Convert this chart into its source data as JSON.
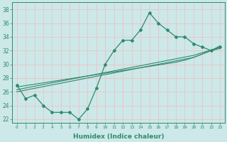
{
  "xlabel": "Humidex (Indice chaleur)",
  "x": [
    0,
    1,
    2,
    3,
    4,
    5,
    6,
    7,
    8,
    9,
    10,
    11,
    12,
    13,
    14,
    15,
    16,
    17,
    18,
    19,
    20,
    21,
    22,
    23
  ],
  "y_main": [
    27.0,
    25.0,
    25.5,
    24.0,
    23.0,
    23.0,
    23.0,
    22.0,
    23.5,
    26.5,
    30.0,
    32.0,
    33.5,
    33.5,
    35.0,
    37.5,
    36.0,
    35.0,
    34.0,
    34.0,
    33.0,
    32.5,
    32.0,
    32.5
  ],
  "y_line1": [
    26.0,
    26.25,
    26.5,
    26.75,
    27.0,
    27.25,
    27.5,
    27.75,
    28.0,
    28.25,
    28.5,
    28.75,
    29.0,
    29.25,
    29.5,
    29.75,
    30.0,
    30.25,
    30.5,
    30.75,
    31.0,
    31.5,
    32.0,
    32.3
  ],
  "y_line2": [
    26.3,
    26.55,
    26.8,
    27.05,
    27.3,
    27.55,
    27.8,
    28.05,
    28.3,
    28.55,
    28.8,
    29.05,
    29.3,
    29.55,
    29.8,
    30.05,
    30.3,
    30.55,
    30.8,
    31.05,
    31.3,
    31.7,
    32.1,
    32.5
  ],
  "y_line3": [
    26.7,
    26.9,
    27.1,
    27.3,
    27.5,
    27.7,
    27.9,
    28.1,
    28.3,
    28.5,
    28.7,
    28.9,
    29.1,
    29.3,
    29.5,
    29.7,
    29.9,
    30.1,
    30.3,
    30.6,
    31.0,
    31.5,
    32.0,
    32.7
  ],
  "line_color": "#2e8b6e",
  "bg_color": "#cce8e8",
  "grid_color": "#e8c8c8",
  "ylim": [
    21.5,
    39.0
  ],
  "xlim": [
    -0.5,
    23.5
  ],
  "yticks": [
    22,
    24,
    26,
    28,
    30,
    32,
    34,
    36,
    38
  ],
  "xticks": [
    0,
    1,
    2,
    3,
    4,
    5,
    6,
    7,
    8,
    9,
    10,
    11,
    12,
    13,
    14,
    15,
    16,
    17,
    18,
    19,
    20,
    21,
    22,
    23
  ]
}
